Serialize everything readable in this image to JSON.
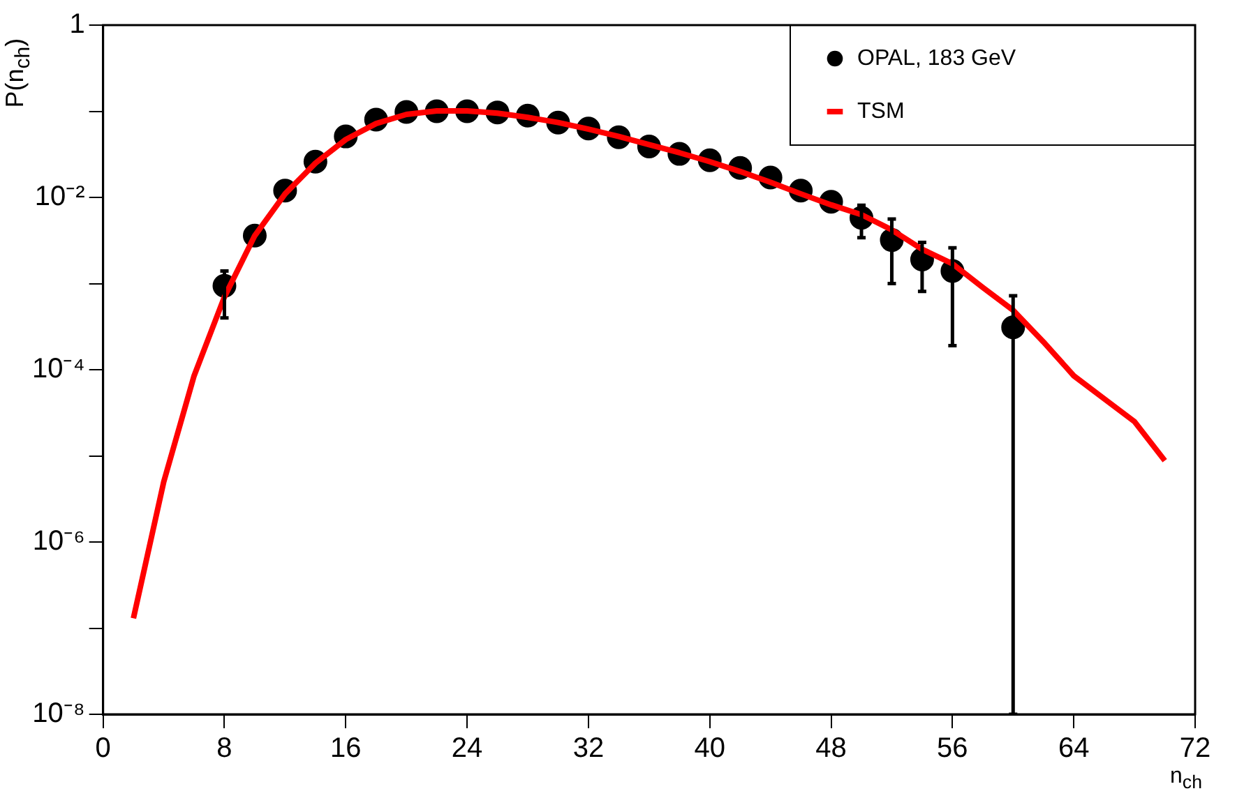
{
  "chart_data": {
    "type": "scatter",
    "xlabel": "n$_{ch}$",
    "ylabel": "P(n$_{ch}$)",
    "log": "y",
    "grid": false,
    "legend": "top right",
    "line_style": "solid",
    "xlim": [
      0,
      72
    ],
    "xticks": [
      0,
      8,
      16,
      24,
      32,
      40,
      48,
      56,
      64,
      72
    ],
    "ylim": [
      1e-08,
      1
    ],
    "yticks": [
      {
        "value": 1e-08,
        "label": "10⁻⁸"
      },
      {
        "value": 1e-07,
        "label": null
      },
      {
        "value": 1e-06,
        "label": "10⁻⁶"
      },
      {
        "value": 1e-05,
        "label": null
      },
      {
        "value": 0.0001,
        "label": "10⁻⁴"
      },
      {
        "value": 0.001,
        "label": null
      },
      {
        "value": 0.01,
        "label": "10⁻²"
      },
      {
        "value": 0.1,
        "label": null
      },
      {
        "value": 1,
        "label": "1"
      }
    ],
    "series": [
      {
        "name": "OPAL, 183 GeV",
        "marker": "circle",
        "color": "#000000",
        "x": [
          8,
          10,
          12,
          14,
          16,
          18,
          20,
          22,
          24,
          26,
          28,
          30,
          32,
          34,
          36,
          38,
          40,
          42,
          44,
          46,
          48,
          50,
          52,
          54,
          56,
          60
        ],
        "values": [
          0.00094,
          0.0036,
          0.012,
          0.026,
          0.051,
          0.08,
          0.098,
          0.1,
          0.1,
          0.097,
          0.089,
          0.074,
          0.063,
          0.05,
          0.039,
          0.032,
          0.027,
          0.022,
          0.017,
          0.012,
          0.0089,
          0.0058,
          0.0032,
          0.0019,
          0.0014,
          0.00031
        ],
        "errors": [
          [
            0.0004,
            0.0014
          ],
          null,
          null,
          null,
          null,
          null,
          null,
          null,
          null,
          null,
          null,
          null,
          null,
          null,
          null,
          null,
          null,
          null,
          null,
          null,
          null,
          [
            0.0034,
            0.0081
          ],
          [
            0.001,
            0.0056
          ],
          [
            0.00081,
            0.003
          ],
          [
            0.00019,
            0.0026
          ],
          [
            1e-08,
            0.00072
          ]
        ]
      },
      {
        "name": "TSM",
        "type": "line",
        "marker": "none",
        "color": "#ff0000",
        "x": [
          2,
          4,
          6,
          8,
          10,
          12,
          14,
          16,
          18,
          20,
          22,
          24,
          26,
          28,
          30,
          32,
          34,
          36,
          38,
          40,
          42,
          44,
          46,
          48,
          50,
          52,
          54,
          56,
          58,
          60,
          62,
          64,
          66,
          68,
          70
        ],
        "values": [
          1.3e-07,
          5e-06,
          8.5e-05,
          0.0007,
          0.0036,
          0.011,
          0.025,
          0.047,
          0.072,
          0.092,
          0.101,
          0.101,
          0.095,
          0.085,
          0.074,
          0.062,
          0.051,
          0.041,
          0.033,
          0.026,
          0.02,
          0.015,
          0.011,
          0.0082,
          0.0063,
          0.0042,
          0.0025,
          0.0017,
          0.0009,
          0.00049,
          0.00021,
          8.5e-05,
          4.6e-05,
          2.5e-05,
          8.8e-06
        ]
      }
    ]
  }
}
